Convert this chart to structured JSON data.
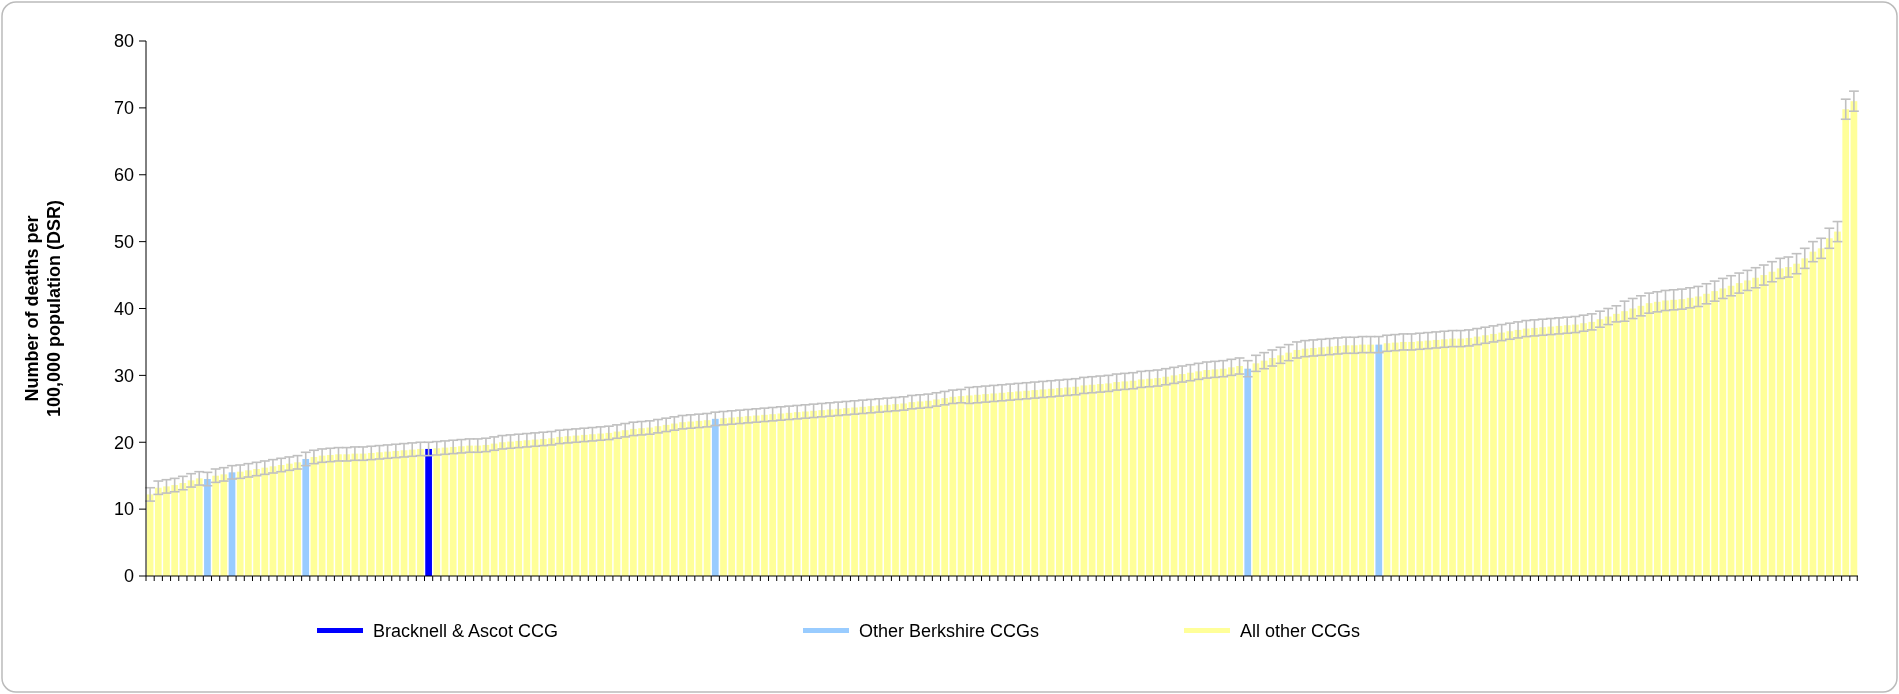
{
  "chart_data": {
    "type": "bar",
    "ylabel": "Number of deaths per 100,000 population (DSR)",
    "ylim": [
      0,
      80
    ],
    "yticks": [
      0,
      10,
      20,
      30,
      40,
      50,
      60,
      70,
      80
    ],
    "grid": false,
    "legend": "bottom",
    "tick_labels": "y",
    "categories": [
      null,
      null,
      null,
      null,
      null,
      null,
      null,
      null,
      null,
      null,
      null,
      null,
      null,
      null,
      null,
      null,
      null,
      null,
      null,
      null,
      null,
      null,
      null,
      null,
      null,
      null,
      null,
      null,
      null,
      null,
      null,
      null,
      null,
      null,
      null,
      null,
      null,
      null,
      null,
      null,
      null,
      null,
      null,
      null,
      null,
      null,
      null,
      null,
      null,
      null,
      null,
      null,
      null,
      null,
      null,
      null,
      null,
      null,
      null,
      null,
      null,
      null,
      null,
      null,
      null,
      null,
      null,
      null,
      null,
      null,
      null,
      null,
      null,
      null,
      null,
      null,
      null,
      null,
      null,
      null,
      null,
      null,
      null,
      null,
      null,
      null,
      null,
      null,
      null,
      null,
      null,
      null,
      null,
      null,
      null,
      null,
      null,
      null,
      null,
      null,
      null,
      null,
      null,
      null,
      null,
      null,
      null,
      null,
      null,
      null,
      null,
      null,
      null,
      null,
      null,
      null,
      null,
      null,
      null,
      null,
      null,
      null,
      null,
      null,
      null,
      null,
      null,
      null,
      null,
      null,
      null,
      null,
      null,
      null,
      null,
      null,
      null,
      null,
      null,
      null,
      null,
      null,
      null,
      null,
      null,
      null,
      null,
      null,
      null,
      null,
      null,
      null,
      null,
      null,
      null,
      null,
      null,
      null,
      null,
      null,
      null,
      null,
      null,
      null,
      null,
      null,
      null,
      null,
      null,
      null,
      null,
      null,
      null,
      null,
      null,
      null,
      null,
      null,
      null,
      null,
      null,
      null,
      null,
      null,
      null,
      null,
      null,
      null,
      null,
      null,
      null,
      null,
      null,
      null,
      null,
      null,
      null,
      null,
      null,
      null,
      null,
      null,
      null,
      null,
      null,
      null,
      null,
      null,
      null
    ],
    "series": [
      {
        "name": "Bracknell & Ascot CCG",
        "color": "#0000ff",
        "values": [
          null,
          null,
          null,
          null,
          null,
          null,
          null,
          null,
          null,
          null,
          null,
          null,
          null,
          null,
          null,
          null,
          null,
          null,
          null,
          null,
          null,
          null,
          null,
          null,
          null,
          null,
          null,
          null,
          null,
          null,
          null,
          null,
          null,
          null,
          19.0,
          null,
          null,
          null,
          null,
          null,
          null,
          null,
          null,
          null,
          null,
          null,
          null,
          null,
          null,
          null,
          null,
          null,
          null,
          null,
          null,
          null,
          null,
          null,
          null,
          null,
          null,
          null,
          null,
          null,
          null,
          null,
          null,
          null,
          null,
          null,
          null,
          null,
          null,
          null,
          null,
          null,
          null,
          null,
          null,
          null,
          null,
          null,
          null,
          null,
          null,
          null,
          null,
          null,
          null,
          null,
          null,
          null,
          null,
          null,
          null,
          null,
          null,
          null,
          null,
          null,
          null,
          null,
          null,
          null,
          null,
          null,
          null,
          null,
          null,
          null,
          null,
          null,
          null,
          null,
          null,
          null,
          null,
          null,
          null,
          null,
          null,
          null,
          null,
          null,
          null,
          null,
          null,
          null,
          null,
          null,
          null,
          null,
          null,
          null,
          null,
          null,
          null,
          null,
          null,
          null,
          null,
          null,
          null,
          null,
          null,
          null,
          null,
          null,
          null,
          null,
          null,
          null,
          null,
          null,
          null,
          null,
          null,
          null,
          null,
          null,
          null,
          null,
          null,
          null,
          null,
          null,
          null,
          null,
          null,
          null,
          null,
          null,
          null,
          null,
          null,
          null,
          null,
          null,
          null,
          null,
          null,
          null,
          null,
          null,
          null,
          null,
          null,
          null,
          null,
          null,
          null,
          null,
          null,
          null,
          null,
          null,
          null,
          null,
          null,
          null,
          null,
          null,
          null,
          null,
          null,
          null,
          null,
          null,
          null
        ],
        "errors": [
          null,
          null,
          null,
          null,
          null,
          null,
          null,
          null,
          null,
          null,
          null,
          null,
          null,
          null,
          null,
          null,
          null,
          null,
          null,
          null,
          null,
          null,
          null,
          null,
          null,
          null,
          null,
          null,
          null,
          null,
          null,
          null,
          null,
          null,
          1,
          null,
          null,
          null,
          null,
          null,
          null,
          null,
          null,
          null,
          null,
          null,
          null,
          null,
          null,
          null,
          null,
          null,
          null,
          null,
          null,
          null,
          null,
          null,
          null,
          null,
          null,
          null,
          null,
          null,
          null,
          null,
          null,
          null,
          null,
          null,
          null,
          null,
          null,
          null,
          null,
          null,
          null,
          null,
          null,
          null,
          null,
          null,
          null,
          null,
          null,
          null,
          null,
          null,
          null,
          null,
          null,
          null,
          null,
          null,
          null,
          null,
          null,
          null,
          null,
          null,
          null,
          null,
          null,
          null,
          null,
          null,
          null,
          null,
          null,
          null,
          null,
          null,
          null,
          null,
          null,
          null,
          null,
          null,
          null,
          null,
          null,
          null,
          null,
          null,
          null,
          null,
          null,
          null,
          null,
          null,
          null,
          null,
          null,
          null,
          null,
          null,
          null,
          null,
          null,
          null,
          null,
          null,
          null,
          null,
          null,
          null,
          null,
          null,
          null,
          null,
          null,
          null,
          null,
          null,
          null,
          null,
          null,
          null,
          null,
          null,
          null,
          null,
          null,
          null,
          null,
          null,
          null,
          null,
          null,
          null,
          null,
          null,
          null,
          null,
          null,
          null,
          null,
          null,
          null,
          null,
          null,
          null,
          null,
          null,
          null,
          null,
          null,
          null,
          null,
          null,
          null,
          null,
          null,
          null,
          null,
          null,
          null,
          null,
          null,
          null,
          null,
          null,
          null,
          null,
          null,
          null,
          null,
          null,
          null
        ]
      },
      {
        "name": "Other Berkshire CCGs",
        "color": "#99ccff",
        "values": [
          null,
          null,
          null,
          null,
          null,
          null,
          null,
          14.5,
          null,
          null,
          15.5,
          null,
          null,
          null,
          null,
          null,
          null,
          null,
          null,
          17.5,
          null,
          null,
          null,
          null,
          null,
          null,
          null,
          null,
          null,
          null,
          null,
          null,
          null,
          null,
          null,
          null,
          null,
          null,
          null,
          null,
          null,
          null,
          null,
          null,
          null,
          null,
          null,
          null,
          null,
          null,
          null,
          null,
          null,
          null,
          null,
          null,
          null,
          null,
          null,
          null,
          null,
          null,
          null,
          null,
          null,
          null,
          null,
          null,
          null,
          23.5,
          null,
          null,
          null,
          null,
          null,
          null,
          null,
          null,
          null,
          null,
          null,
          null,
          null,
          null,
          null,
          null,
          null,
          null,
          null,
          null,
          null,
          null,
          null,
          null,
          null,
          null,
          null,
          null,
          null,
          null,
          null,
          null,
          null,
          null,
          null,
          null,
          null,
          null,
          null,
          null,
          null,
          null,
          null,
          null,
          null,
          null,
          null,
          null,
          null,
          null,
          null,
          null,
          null,
          null,
          null,
          null,
          null,
          null,
          null,
          null,
          null,
          null,
          null,
          null,
          31.0,
          null,
          null,
          null,
          null,
          null,
          null,
          null,
          null,
          null,
          null,
          null,
          null,
          null,
          null,
          null,
          34.6,
          null,
          null,
          null,
          null,
          null,
          null,
          null,
          null,
          null,
          null,
          null,
          null,
          null,
          null,
          null,
          null,
          null,
          null,
          null,
          null,
          null,
          null,
          null,
          null,
          null,
          null,
          null,
          null,
          null,
          null,
          null,
          null,
          null,
          null,
          null,
          null,
          null,
          null,
          null,
          null,
          null,
          null,
          null,
          null,
          null,
          null,
          null,
          null,
          null,
          null,
          null,
          null,
          null,
          null,
          null,
          null,
          null,
          null
        ],
        "errors": [
          null,
          null,
          null,
          null,
          null,
          null,
          null,
          1,
          null,
          null,
          1,
          null,
          null,
          null,
          null,
          null,
          null,
          null,
          null,
          1,
          null,
          null,
          null,
          null,
          null,
          null,
          null,
          null,
          null,
          null,
          null,
          null,
          null,
          null,
          null,
          null,
          null,
          null,
          null,
          null,
          null,
          null,
          null,
          null,
          null,
          null,
          null,
          null,
          null,
          null,
          null,
          null,
          null,
          null,
          null,
          null,
          null,
          null,
          null,
          null,
          null,
          null,
          null,
          null,
          null,
          null,
          null,
          null,
          null,
          1,
          null,
          null,
          null,
          null,
          null,
          null,
          null,
          null,
          null,
          null,
          null,
          null,
          null,
          null,
          null,
          null,
          null,
          null,
          null,
          null,
          null,
          null,
          null,
          null,
          null,
          null,
          null,
          null,
          null,
          null,
          null,
          null,
          null,
          null,
          null,
          null,
          null,
          null,
          null,
          null,
          null,
          null,
          null,
          null,
          null,
          null,
          null,
          null,
          null,
          null,
          null,
          null,
          null,
          null,
          null,
          null,
          null,
          null,
          null,
          null,
          null,
          null,
          null,
          null,
          1.2,
          null,
          null,
          null,
          null,
          null,
          null,
          null,
          null,
          null,
          null,
          null,
          null,
          null,
          null,
          null,
          1.2,
          null,
          null,
          null,
          null,
          null,
          null,
          null,
          null,
          null,
          null,
          null,
          null,
          null,
          null,
          null,
          null,
          null,
          null,
          null,
          null,
          null,
          null,
          null,
          null,
          null,
          null,
          null,
          null,
          null,
          null,
          null,
          null,
          null,
          null,
          null,
          null,
          null,
          null,
          null,
          null,
          null,
          null,
          null,
          null,
          null,
          null,
          null,
          null,
          null,
          null,
          null,
          null,
          null,
          null,
          null,
          null,
          null,
          null
        ]
      },
      {
        "name": "All other CCGs",
        "color": "#ffff99",
        "values": [
          12.2,
          13.2,
          13.4,
          13.6,
          13.9,
          14.3,
          14.6,
          null,
          15.0,
          15.2,
          null,
          15.6,
          15.8,
          16.0,
          16.2,
          16.4,
          16.6,
          16.8,
          17.0,
          null,
          17.8,
          18.0,
          18.1,
          18.2,
          18.2,
          18.3,
          18.3,
          18.4,
          18.5,
          18.6,
          18.7,
          18.8,
          18.9,
          19.0,
          null,
          19.1,
          19.2,
          19.3,
          19.4,
          19.5,
          19.5,
          19.6,
          19.8,
          20.0,
          20.1,
          20.2,
          20.3,
          20.4,
          20.5,
          20.6,
          20.8,
          20.9,
          21.0,
          21.1,
          21.2,
          21.3,
          21.4,
          21.6,
          21.8,
          22.0,
          22.1,
          22.2,
          22.4,
          22.6,
          22.8,
          23.0,
          23.1,
          23.2,
          23.3,
          null,
          23.6,
          23.7,
          23.8,
          23.9,
          24.0,
          24.1,
          24.2,
          24.3,
          24.4,
          24.5,
          24.6,
          24.7,
          24.8,
          24.9,
          25.0,
          25.1,
          25.2,
          25.3,
          25.4,
          25.5,
          25.6,
          25.7,
          25.8,
          26.0,
          26.1,
          26.2,
          26.4,
          26.6,
          26.8,
          26.9,
          27.0,
          27.1,
          27.2,
          27.3,
          27.4,
          27.5,
          27.6,
          27.7,
          27.8,
          27.9,
          28.0,
          28.1,
          28.2,
          28.3,
          28.5,
          28.6,
          28.7,
          28.8,
          29.0,
          29.1,
          29.2,
          29.4,
          29.5,
          29.6,
          29.8,
          30.0,
          30.2,
          30.4,
          30.6,
          30.8,
          30.9,
          31.0,
          31.2,
          31.4,
          null,
          31.8,
          32.2,
          32.6,
          33.0,
          33.4,
          33.8,
          34.0,
          34.1,
          34.2,
          34.3,
          34.4,
          34.5,
          34.5,
          34.6,
          34.6,
          null,
          34.8,
          34.9,
          35.0,
          35.0,
          35.1,
          35.2,
          35.3,
          35.4,
          35.5,
          35.5,
          35.6,
          35.8,
          36.0,
          36.2,
          36.4,
          36.6,
          36.8,
          37.0,
          37.1,
          37.2,
          37.3,
          37.4,
          37.5,
          37.6,
          37.8,
          38.0,
          38.4,
          38.8,
          39.2,
          39.6,
          40.0,
          40.4,
          40.8,
          41.0,
          41.2,
          41.3,
          41.4,
          41.6,
          41.8,
          42.2,
          42.6,
          43.0,
          43.4,
          43.8,
          44.2,
          44.6,
          45.0,
          45.5,
          46.0,
          46.2,
          46.7,
          47.5,
          48.5,
          49.0,
          50.5,
          51.5,
          69.8,
          71.0
        ],
        "errors": [
          1,
          1,
          1,
          1,
          1,
          1,
          1,
          null,
          1,
          1,
          null,
          1,
          1,
          1,
          1,
          1,
          1,
          1,
          1,
          null,
          1,
          1,
          1,
          1,
          1,
          1,
          1,
          1,
          1,
          1,
          1,
          1,
          1,
          1,
          null,
          1,
          1,
          1,
          1,
          1,
          1,
          1,
          1,
          1,
          1,
          1,
          1,
          1,
          1,
          1,
          1,
          1,
          1,
          1,
          1,
          1,
          1,
          1,
          1,
          1,
          1,
          1,
          1,
          1,
          1,
          1,
          1,
          1,
          1,
          null,
          1,
          1,
          1,
          1,
          1,
          1,
          1,
          1,
          1,
          1,
          1,
          1,
          1,
          1,
          1,
          1,
          1,
          1,
          1,
          1,
          1,
          1,
          1,
          1,
          1,
          1,
          1,
          1,
          1,
          1,
          1.2,
          1.2,
          1.2,
          1.2,
          1.2,
          1.2,
          1.2,
          1.2,
          1.2,
          1.2,
          1.2,
          1.2,
          1.2,
          1.2,
          1.2,
          1.2,
          1.2,
          1.2,
          1.2,
          1.2,
          1.2,
          1.2,
          1.2,
          1.2,
          1.2,
          1.2,
          1.2,
          1.2,
          1.2,
          1.2,
          1.2,
          1.2,
          1.2,
          1.2,
          null,
          1.2,
          1.2,
          1.2,
          1.2,
          1.2,
          1.2,
          1.2,
          1.2,
          1.2,
          1.2,
          1.2,
          1.2,
          1.2,
          1.2,
          1.2,
          null,
          1.2,
          1.2,
          1.2,
          1.2,
          1.2,
          1.2,
          1.2,
          1.2,
          1.2,
          1.2,
          1.2,
          1.2,
          1.2,
          1.2,
          1.2,
          1.2,
          1.2,
          1.2,
          1.2,
          1.2,
          1.2,
          1.2,
          1.2,
          1.2,
          1.2,
          1.2,
          1.2,
          1.2,
          1.2,
          1.5,
          1.5,
          1.5,
          1.5,
          1.5,
          1.5,
          1.5,
          1.5,
          1.5,
          1.5,
          1.5,
          1.5,
          1.5,
          1.5,
          1.5,
          1.5,
          1.5,
          1.5,
          1.5,
          1.5,
          1.5,
          1.5,
          1.5,
          1.5,
          1.5,
          1.5,
          1.5,
          1.5,
          1.5
        ]
      }
    ]
  }
}
